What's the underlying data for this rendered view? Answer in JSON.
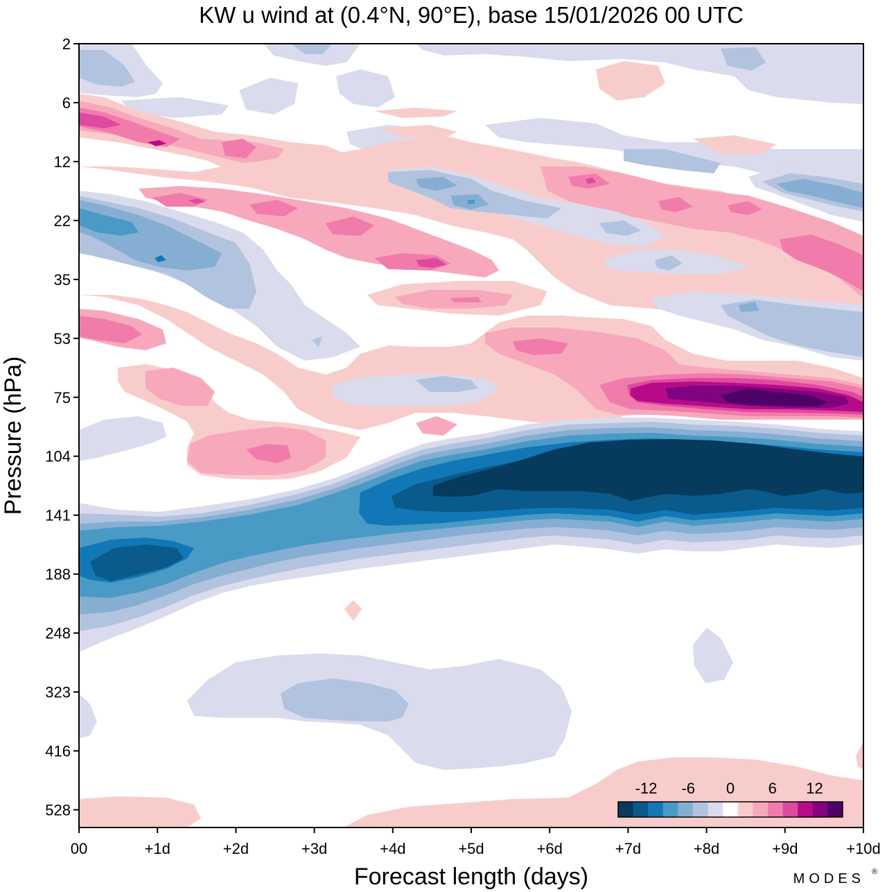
{
  "chart_data": {
    "type": "heatmap",
    "title": "KW u wind at (0.4°N, 90°E),  base 15/01/2026  00 UTC",
    "xlabel": "Forecast length (days)",
    "ylabel": "Pressure (hPa)",
    "x_tick_labels": [
      "00",
      "+1d",
      "+2d",
      "+3d",
      "+4d",
      "+5d",
      "+6d",
      "+7d",
      "+8d",
      "+9d",
      "+10d"
    ],
    "x_range_days": [
      0,
      10
    ],
    "y_tick_labels": [
      "2",
      "6",
      "12",
      "22",
      "35",
      "53",
      "75",
      "104",
      "141",
      "188",
      "248",
      "323",
      "416",
      "528"
    ],
    "y_scale": "log-pressure",
    "brand": "MODES",
    "colorbar": {
      "tick_labels": [
        "-12",
        "-6",
        "0",
        "6",
        "12"
      ],
      "tick_values": [
        -12,
        -6,
        0,
        6,
        12
      ],
      "levels": [
        -16,
        -14,
        -12,
        -10,
        -8,
        -6,
        -4,
        -2,
        2,
        4,
        6,
        8,
        10,
        12,
        14,
        16
      ],
      "colors": [
        "#073b5e",
        "#0a5a8c",
        "#1277b6",
        "#4a9ac6",
        "#86aed3",
        "#b2c3df",
        "#dadbed",
        "#ffffff",
        "#f9cccc",
        "#f7a9bb",
        "#f17cab",
        "#de4a9f",
        "#b80b8a",
        "#820380",
        "#4e0167"
      ]
    },
    "features": [
      {
        "label": "strong easterly core",
        "sign": "negative",
        "value": -16,
        "days": [
          4.5,
          10
        ],
        "pressure_hPa": [
          100,
          135
        ]
      },
      {
        "label": "strong westerly core",
        "sign": "positive",
        "value": 16,
        "days": [
          7.5,
          9.5
        ],
        "pressure_hPa": [
          70,
          82
        ]
      },
      {
        "label": "lower stratosphere easterlies",
        "sign": "negative",
        "value": -12,
        "days": [
          0,
          2
        ],
        "pressure_hPa": [
          160,
          200
        ]
      },
      {
        "label": "descending westerly band",
        "sign": "positive",
        "value": 10,
        "days": [
          0,
          10
        ],
        "pressure_hPa": [
          8,
          40
        ]
      },
      {
        "label": "upper easterly band",
        "sign": "negative",
        "value": -8,
        "days": [
          0,
          3
        ],
        "pressure_hPa": [
          18,
          35
        ]
      },
      {
        "label": "mid-troposphere easterlies",
        "sign": "negative",
        "value": -4,
        "days": [
          1.5,
          6.3
        ],
        "pressure_hPa": [
          290,
          400
        ]
      },
      {
        "label": "lower troposphere westerlies",
        "sign": "positive",
        "value": 2,
        "days": [
          0,
          10
        ],
        "pressure_hPa": [
          450,
          600
        ]
      }
    ]
  }
}
